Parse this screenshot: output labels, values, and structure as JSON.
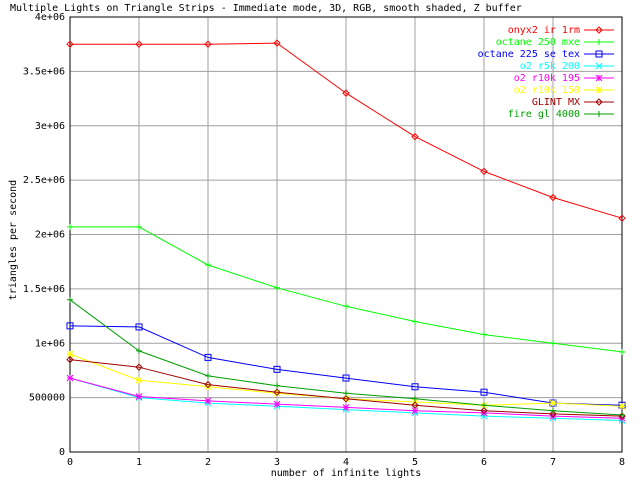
{
  "chart_data": {
    "type": "line",
    "title": "Multiple Lights on Triangle Strips - Immediate mode, 3D, RGB, smooth shaded, Z buffer",
    "xlabel": "number of infinite lights",
    "ylabel": "triangles per second",
    "xlim": [
      0,
      8
    ],
    "ylim": [
      0,
      4000000
    ],
    "x_ticks": [
      0,
      1,
      2,
      3,
      4,
      5,
      6,
      7,
      8
    ],
    "x_tick_labels": [
      "0",
      "1",
      "2",
      "3",
      "4",
      "5",
      "6",
      "7",
      "8"
    ],
    "y_ticks": [
      0,
      500000,
      1000000,
      1500000,
      2000000,
      2500000,
      3000000,
      3500000,
      4000000
    ],
    "y_tick_labels": [
      "0",
      "500000",
      "1e+06",
      "1.5e+06",
      "2e+06",
      "2.5e+06",
      "3e+06",
      "3.5e+06",
      "4e+06"
    ],
    "grid": true,
    "legend_position": "top-right",
    "x": [
      0,
      1,
      2,
      3,
      4,
      5,
      6,
      7,
      8
    ],
    "series": [
      {
        "name": "onyx2 ir 1rm",
        "color": "#ff0000",
        "marker": "diamond",
        "values": [
          3750000,
          3750000,
          3750000,
          3760000,
          3300000,
          2900000,
          2580000,
          2340000,
          2150000
        ]
      },
      {
        "name": "octane 250 mxe",
        "color": "#00ff00",
        "marker": "plus",
        "values": [
          2070000,
          2070000,
          1720000,
          1510000,
          1340000,
          1200000,
          1080000,
          1000000,
          920000
        ]
      },
      {
        "name": "octane 225 se tex",
        "color": "#0000ff",
        "marker": "square",
        "values": [
          1160000,
          1150000,
          870000,
          760000,
          680000,
          600000,
          550000,
          450000,
          430000
        ]
      },
      {
        "name": "o2 r5k 200",
        "color": "#00ffff",
        "marker": "cross",
        "values": [
          680000,
          500000,
          450000,
          420000,
          390000,
          360000,
          330000,
          310000,
          290000
        ]
      },
      {
        "name": "o2 r10k 195",
        "color": "#ff00ff",
        "marker": "star",
        "values": [
          680000,
          510000,
          470000,
          440000,
          410000,
          380000,
          360000,
          330000,
          310000
        ]
      },
      {
        "name": "o2 r10k 150",
        "color": "#ffff00",
        "marker": "star",
        "values": [
          900000,
          660000,
          600000,
          540000,
          490000,
          460000,
          430000,
          450000,
          420000
        ]
      },
      {
        "name": "GLINT MX",
        "color": "#a00000",
        "marker": "diamond",
        "values": [
          850000,
          780000,
          620000,
          550000,
          490000,
          430000,
          380000,
          350000,
          330000
        ]
      },
      {
        "name": "fire gl 4000",
        "color": "#00a000",
        "marker": "plus",
        "values": [
          1400000,
          930000,
          700000,
          610000,
          540000,
          490000,
          430000,
          380000,
          340000
        ]
      }
    ]
  }
}
